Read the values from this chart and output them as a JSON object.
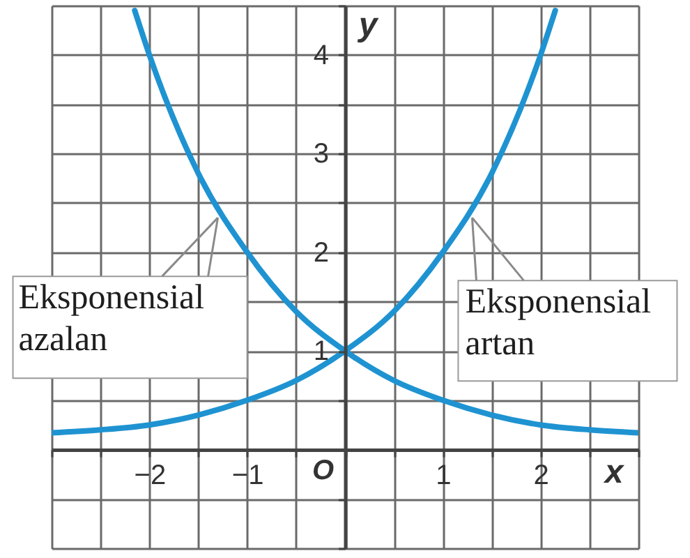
{
  "chart_data": {
    "type": "line",
    "xlabel": "x",
    "ylabel": "y",
    "xlim": [
      -3,
      3
    ],
    "ylim": [
      -1,
      4.5
    ],
    "xticks": [
      {
        "value": -3,
        "label": null
      },
      {
        "value": -2.5,
        "label": null
      },
      -2,
      {
        "value": -1.5,
        "label": null
      },
      -1,
      {
        "value": -0.5,
        "label": null
      },
      {
        "value": 0,
        "label": null
      },
      {
        "value": 0.5,
        "label": null
      },
      1,
      {
        "value": 1.5,
        "label": null
      },
      2,
      {
        "value": 2.5,
        "label": null
      },
      {
        "value": 3,
        "label": null
      }
    ],
    "yticks": [
      {
        "value": -1,
        "label": null
      },
      {
        "value": -0.5,
        "label": null
      },
      {
        "value": 0,
        "label": null
      },
      {
        "value": 0.5,
        "label": null
      },
      1,
      {
        "value": 1.5,
        "label": null
      },
      2,
      {
        "value": 2.5,
        "label": null
      },
      3,
      {
        "value": 3.5,
        "label": null
      },
      4,
      {
        "value": 4.5,
        "label": null
      }
    ],
    "grid": true,
    "series": [
      {
        "color": "#1f93d1",
        "x": [
          -3,
          -2.5,
          -2,
          -1.5,
          -1,
          -0.5,
          0,
          0.5,
          1,
          1.5,
          2,
          2.15
        ],
        "values": [
          0.17,
          0.2,
          0.25,
          0.35,
          0.5,
          0.7,
          1,
          1.4,
          2,
          2.8,
          4,
          4.45
        ]
      },
      {
        "color": "#1f93d1",
        "x": [
          -2.15,
          -2,
          -1.5,
          -1,
          -0.5,
          0,
          0.5,
          1,
          1.5,
          2,
          2.5,
          3
        ],
        "values": [
          4.45,
          4,
          2.8,
          2,
          1.4,
          1,
          0.7,
          0.5,
          0.35,
          0.25,
          0.2,
          0.17
        ]
      }
    ],
    "annotations": [
      {
        "text": "Eksponensial azalan",
        "x": -1.3,
        "y": 2.35
      },
      {
        "text": "Eksponensial artan",
        "x": 1.3,
        "y": 2.35
      },
      "O"
    ]
  }
}
